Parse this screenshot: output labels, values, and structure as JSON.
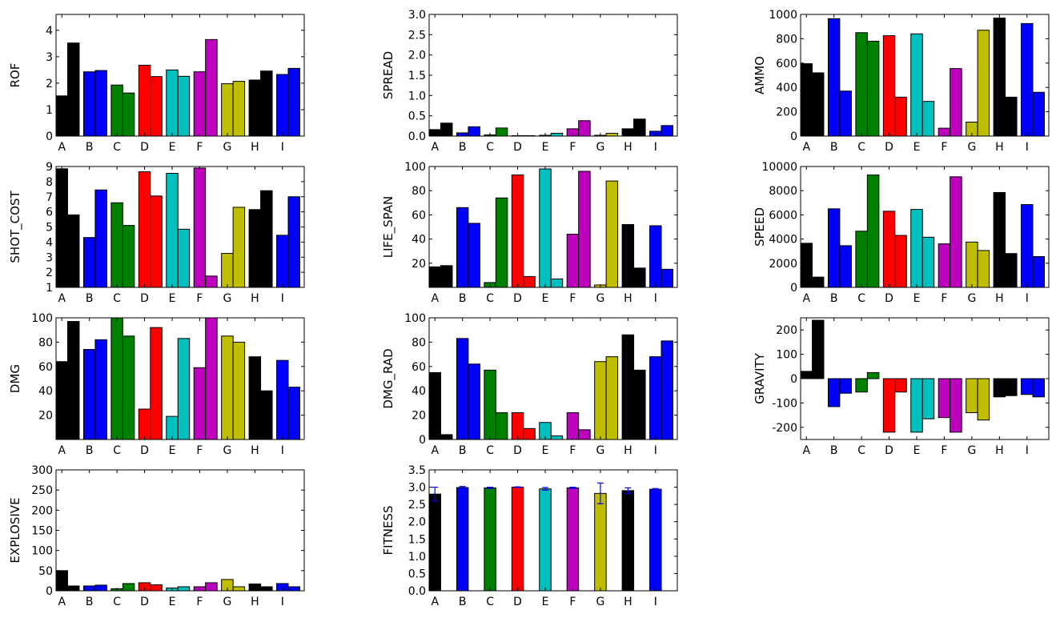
{
  "chart_data": [
    {
      "type": "bar",
      "ylabel": "ROF",
      "categories": [
        "A",
        "B",
        "C",
        "D",
        "E",
        "F",
        "G",
        "H",
        "I"
      ],
      "ylim": [
        0,
        4.6
      ],
      "yticks": [
        0,
        1,
        2,
        3,
        4
      ],
      "series": [
        {
          "values": [
            1.52,
            2.43,
            1.93,
            2.68,
            2.5,
            2.43,
            1.98,
            2.12,
            2.33
          ]
        },
        {
          "values": [
            3.52,
            2.48,
            1.63,
            2.25,
            2.26,
            3.65,
            2.07,
            2.46,
            2.56
          ]
        }
      ]
    },
    {
      "type": "bar",
      "ylabel": "SPREAD",
      "categories": [
        "A",
        "B",
        "C",
        "D",
        "E",
        "F",
        "G",
        "H",
        "I"
      ],
      "ylim": [
        0,
        3.0
      ],
      "yticks": [
        "0.0",
        "0.5",
        "1.0",
        "1.5",
        "2.0",
        "2.5",
        "3.0"
      ],
      "series": [
        {
          "values": [
            0.16,
            0.08,
            0.03,
            0.01,
            0.02,
            0.18,
            0.02,
            0.18,
            0.12
          ]
        },
        {
          "values": [
            0.32,
            0.23,
            0.2,
            0.01,
            0.07,
            0.38,
            0.07,
            0.42,
            0.26
          ]
        }
      ]
    },
    {
      "type": "bar",
      "ylabel": "AMMO",
      "categories": [
        "A",
        "B",
        "C",
        "D",
        "E",
        "F",
        "G",
        "H",
        "I"
      ],
      "ylim": [
        0,
        1000
      ],
      "yticks": [
        0,
        200,
        400,
        600,
        800,
        1000
      ],
      "series": [
        {
          "values": [
            595,
            965,
            850,
            825,
            840,
            65,
            115,
            970,
            925
          ]
        },
        {
          "values": [
            520,
            370,
            780,
            320,
            285,
            555,
            870,
            320,
            360
          ]
        }
      ]
    },
    {
      "type": "bar",
      "ylabel": "SHOT_COST",
      "categories": [
        "A",
        "B",
        "C",
        "D",
        "E",
        "F",
        "G",
        "H",
        "I"
      ],
      "ylim": [
        1,
        9
      ],
      "yticks": [
        1,
        2,
        3,
        4,
        5,
        6,
        7,
        8,
        9
      ],
      "series": [
        {
          "values": [
            8.85,
            4.3,
            6.6,
            8.65,
            8.55,
            8.9,
            3.25,
            6.15,
            4.45
          ]
        },
        {
          "values": [
            5.8,
            7.45,
            5.1,
            7.05,
            4.85,
            1.75,
            6.3,
            7.4,
            7.0
          ]
        }
      ]
    },
    {
      "type": "bar",
      "ylabel": "LIFE_SPAN",
      "categories": [
        "A",
        "B",
        "C",
        "D",
        "E",
        "F",
        "G",
        "H",
        "I"
      ],
      "ylim": [
        0,
        100
      ],
      "yticks": [
        20,
        40,
        60,
        80,
        100
      ],
      "series": [
        {
          "values": [
            17,
            66,
            4,
            93,
            98,
            44,
            2,
            52,
            51
          ]
        },
        {
          "values": [
            18,
            53,
            74,
            9,
            7,
            96,
            88,
            16,
            15
          ]
        }
      ]
    },
    {
      "type": "bar",
      "ylabel": "SPEED",
      "categories": [
        "A",
        "B",
        "C",
        "D",
        "E",
        "F",
        "G",
        "H",
        "I"
      ],
      "ylim": [
        0,
        10000
      ],
      "yticks": [
        0,
        2000,
        4000,
        6000,
        8000,
        10000
      ],
      "series": [
        {
          "values": [
            3650,
            6500,
            4650,
            6300,
            6450,
            3600,
            3750,
            7850,
            6850
          ]
        },
        {
          "values": [
            850,
            3450,
            9300,
            4300,
            4150,
            9150,
            3050,
            2800,
            2550
          ]
        }
      ]
    },
    {
      "type": "bar",
      "ylabel": "DMG",
      "categories": [
        "A",
        "B",
        "C",
        "D",
        "E",
        "F",
        "G",
        "H",
        "I"
      ],
      "ylim": [
        0,
        100
      ],
      "yticks": [
        20,
        40,
        60,
        80,
        100
      ],
      "series": [
        {
          "values": [
            64,
            74,
            100,
            25,
            19,
            59,
            85,
            68,
            65
          ]
        },
        {
          "values": [
            97,
            82,
            85,
            92,
            83,
            100,
            80,
            40,
            43
          ]
        }
      ]
    },
    {
      "type": "bar",
      "ylabel": "DMG_RAD",
      "categories": [
        "A",
        "B",
        "C",
        "D",
        "E",
        "F",
        "G",
        "H",
        "I"
      ],
      "ylim": [
        0,
        100
      ],
      "yticks": [
        0,
        20,
        40,
        60,
        80,
        100
      ],
      "series": [
        {
          "values": [
            55,
            83,
            57,
            22,
            14,
            22,
            64,
            86,
            68
          ]
        },
        {
          "values": [
            4,
            62,
            22,
            9,
            3,
            8,
            68,
            57,
            81
          ]
        }
      ]
    },
    {
      "type": "bar",
      "ylabel": "GRAVITY",
      "categories": [
        "A",
        "B",
        "C",
        "D",
        "E",
        "F",
        "G",
        "H",
        "I"
      ],
      "ylim": [
        -250,
        250
      ],
      "yticks": [
        -200,
        -100,
        0,
        100,
        200
      ],
      "series": [
        {
          "values": [
            30,
            -115,
            -55,
            -220,
            -220,
            -160,
            -140,
            -75,
            -65
          ]
        },
        {
          "values": [
            240,
            -60,
            25,
            -55,
            -165,
            -220,
            -170,
            -70,
            -75
          ]
        }
      ]
    },
    {
      "type": "bar",
      "ylabel": "EXPLOSIVE",
      "categories": [
        "A",
        "B",
        "C",
        "D",
        "E",
        "F",
        "G",
        "H",
        "I"
      ],
      "ylim": [
        0,
        300
      ],
      "yticks": [
        0,
        50,
        100,
        150,
        200,
        250,
        300
      ],
      "series": [
        {
          "values": [
            50,
            12,
            5,
            20,
            7,
            10,
            28,
            17,
            18
          ]
        },
        {
          "values": [
            12,
            14,
            18,
            15,
            10,
            20,
            10,
            10,
            10
          ]
        }
      ]
    },
    {
      "type": "bar",
      "ylabel": "FITNESS",
      "categories": [
        "A",
        "B",
        "C",
        "D",
        "E",
        "F",
        "G",
        "H",
        "I"
      ],
      "ylim": [
        0,
        3.5
      ],
      "yticks": [
        "0.0",
        "0.5",
        "1.0",
        "1.5",
        "2.0",
        "2.5",
        "3.0",
        "3.5"
      ],
      "series": [
        {
          "values": [
            2.8,
            2.99,
            2.98,
            3.0,
            2.95,
            2.98,
            2.82,
            2.9,
            2.94
          ],
          "errors": [
            0.2,
            0.03,
            0.02,
            0.01,
            0.04,
            0.02,
            0.3,
            0.08,
            0.02
          ]
        }
      ]
    }
  ],
  "colors": {
    "series_cycle": [
      "#000000",
      "#0000ff",
      "#008000",
      "#ff0000",
      "#00bfbf",
      "#bf00bf",
      "#bfbf00",
      "#000000",
      "#0000ff"
    ],
    "error_bar": "#0000ff"
  }
}
